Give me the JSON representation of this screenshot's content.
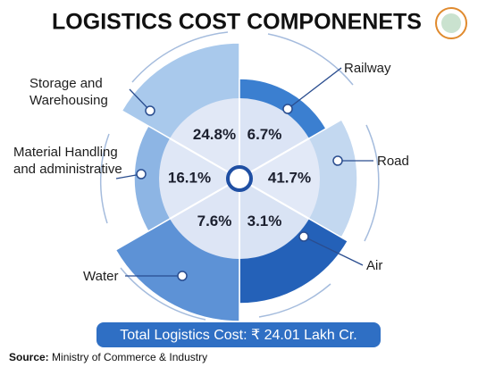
{
  "chart_data": {
    "type": "pie",
    "title": "LOGISTICS COST COMPONENETS",
    "categories": [
      "Storage and Warehousing",
      "Railway",
      "Road",
      "Air",
      "Water",
      "Material Handling and administrative"
    ],
    "values": [
      24.8,
      6.7,
      41.7,
      3.1,
      7.6,
      16.1
    ],
    "value_labels": [
      "24.8%",
      "6.7%",
      "41.7%",
      "3.1%",
      "7.6%",
      "16.1%"
    ],
    "colors": [
      "#a9c9ec",
      "#3b7fd0",
      "#c3d8f0",
      "#2461b8",
      "#5d92d6",
      "#8db5e4"
    ],
    "total": "Total Logistics Cost: ₹ 24.01 Lakh Cr.",
    "source_label": "Source:",
    "source": "Ministry of Commerce & Industry"
  }
}
